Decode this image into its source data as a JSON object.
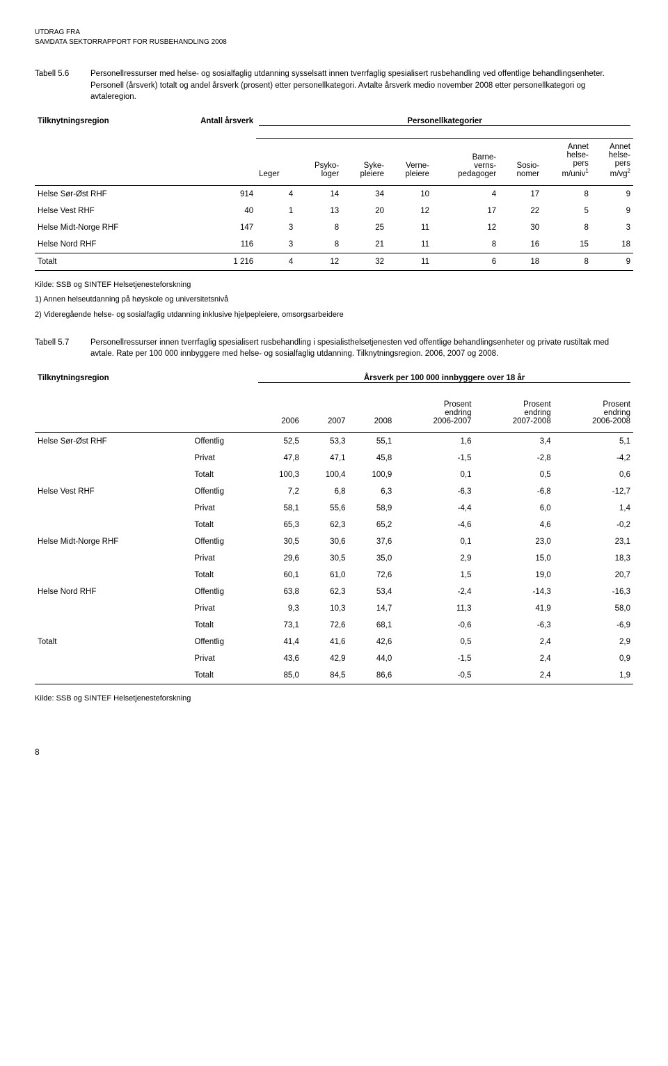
{
  "header": {
    "line1": "UTDRAG FRA",
    "line2": "SAMDATA SEKTORRAPPORT FOR RUSBEHANDLING 2008"
  },
  "table56": {
    "caption_label": "Tabell 5.6",
    "caption_text": "Personellressurser med helse- og sosialfaglig utdanning sysselsatt innen tverrfaglig spesialisert rusbehandling ved offentlige behandlingsenheter. Personell (årsverk) totalt og andel årsverk (prosent) etter personellkategori. Avtalte årsverk medio november 2008 etter personellkategori og avtaleregion.",
    "col_region": "Tilknytningsregion",
    "col_antall": "Antall årsverk",
    "col_span": "Personellkategorier",
    "cols": {
      "leger": "Leger",
      "psyko": "Psyko-\nloger",
      "syke": "Syke-\npleiere",
      "verne": "Verne-\npleiere",
      "barne": "Barne-\nverns-\npedagoger",
      "sosio": "Sosio-\nnomer",
      "annet1_a": "Annet",
      "annet1_b": "helse-",
      "annet1_c": "pers",
      "annet1_d": "m/univ",
      "annet2_a": "Annet",
      "annet2_b": "helse-",
      "annet2_c": "pers",
      "annet2_d": "m/vg"
    },
    "rows": [
      {
        "name": "Helse Sør-Øst RHF",
        "antall": "914",
        "v": [
          "4",
          "14",
          "34",
          "10",
          "4",
          "17",
          "8",
          "9"
        ]
      },
      {
        "name": "Helse Vest RHF",
        "antall": "40",
        "v": [
          "1",
          "13",
          "20",
          "12",
          "17",
          "22",
          "5",
          "9"
        ]
      },
      {
        "name": "Helse Midt-Norge RHF",
        "antall": "147",
        "v": [
          "3",
          "8",
          "25",
          "11",
          "12",
          "30",
          "8",
          "3"
        ]
      },
      {
        "name": "Helse Nord RHF",
        "antall": "116",
        "v": [
          "3",
          "8",
          "21",
          "11",
          "8",
          "16",
          "15",
          "18"
        ]
      }
    ],
    "total": {
      "name": "Totalt",
      "antall": "1 216",
      "v": [
        "4",
        "12",
        "32",
        "11",
        "6",
        "18",
        "8",
        "9"
      ]
    },
    "foot1": "Kilde: SSB og SINTEF Helsetjenesteforskning",
    "foot2": "1) Annen helseutdanning på høyskole og universitetsnivå",
    "foot3": "2) Videregående helse- og sosialfaglig utdanning inklusive hjelpepleiere, omsorgsarbeidere"
  },
  "table57": {
    "caption_label": "Tabell 5.7",
    "caption_text": "Personellressurser innen tverrfaglig spesialisert rusbehandling i spesialisthelsetjenesten ved offentlige behandlingsenheter og private rustiltak med avtale. Rate per 100 000 innbyggere med helse- og sosialfaglig utdanning. Tilknytningsregion. 2006, 2007 og 2008.",
    "col_region": "Tilknytningsregion",
    "col_span": "Årsverk per 100 000 innbyggere over 18 år",
    "cols": {
      "y2006": "2006",
      "y2007": "2007",
      "y2008": "2008",
      "p0607_a": "Prosent",
      "p0607_b": "endring",
      "p0607_c": "2006-2007",
      "p0708_a": "Prosent",
      "p0708_b": "endring",
      "p0708_c": "2007-2008",
      "p0608_a": "Prosent",
      "p0608_b": "endring",
      "p0608_c": "2006-2008"
    },
    "labels": {
      "off": "Offentlig",
      "priv": "Privat",
      "tot": "Totalt"
    },
    "regions": [
      {
        "name": "Helse Sør-Øst RHF",
        "rows": [
          [
            "Offentlig",
            "52,5",
            "53,3",
            "55,1",
            "1,6",
            "3,4",
            "5,1"
          ],
          [
            "Privat",
            "47,8",
            "47,1",
            "45,8",
            "-1,5",
            "-2,8",
            "-4,2"
          ],
          [
            "Totalt",
            "100,3",
            "100,4",
            "100,9",
            "0,1",
            "0,5",
            "0,6"
          ]
        ]
      },
      {
        "name": "Helse Vest RHF",
        "rows": [
          [
            "Offentlig",
            "7,2",
            "6,8",
            "6,3",
            "-6,3",
            "-6,8",
            "-12,7"
          ],
          [
            "Privat",
            "58,1",
            "55,6",
            "58,9",
            "-4,4",
            "6,0",
            "1,4"
          ],
          [
            "Totalt",
            "65,3",
            "62,3",
            "65,2",
            "-4,6",
            "4,6",
            "-0,2"
          ]
        ]
      },
      {
        "name": "Helse Midt-Norge RHF",
        "rows": [
          [
            "Offentlig",
            "30,5",
            "30,6",
            "37,6",
            "0,1",
            "23,0",
            "23,1"
          ],
          [
            "Privat",
            "29,6",
            "30,5",
            "35,0",
            "2,9",
            "15,0",
            "18,3"
          ],
          [
            "Totalt",
            "60,1",
            "61,0",
            "72,6",
            "1,5",
            "19,0",
            "20,7"
          ]
        ]
      },
      {
        "name": "Helse Nord RHF",
        "rows": [
          [
            "Offentlig",
            "63,8",
            "62,3",
            "53,4",
            "-2,4",
            "-14,3",
            "-16,3"
          ],
          [
            "Privat",
            "9,3",
            "10,3",
            "14,7",
            "11,3",
            "41,9",
            "58,0"
          ],
          [
            "Totalt",
            "73,1",
            "72,6",
            "68,1",
            "-0,6",
            "-6,3",
            "-6,9"
          ]
        ]
      },
      {
        "name": "Totalt",
        "rows": [
          [
            "Offentlig",
            "41,4",
            "41,6",
            "42,6",
            "0,5",
            "2,4",
            "2,9"
          ],
          [
            "Privat",
            "43,6",
            "42,9",
            "44,0",
            "-1,5",
            "2,4",
            "0,9"
          ],
          [
            "Totalt",
            "85,0",
            "84,5",
            "86,6",
            "-0,5",
            "2,4",
            "1,9"
          ]
        ]
      }
    ],
    "foot": "Kilde: SSB og SINTEF Helsetjenesteforskning"
  },
  "page_number": "8"
}
